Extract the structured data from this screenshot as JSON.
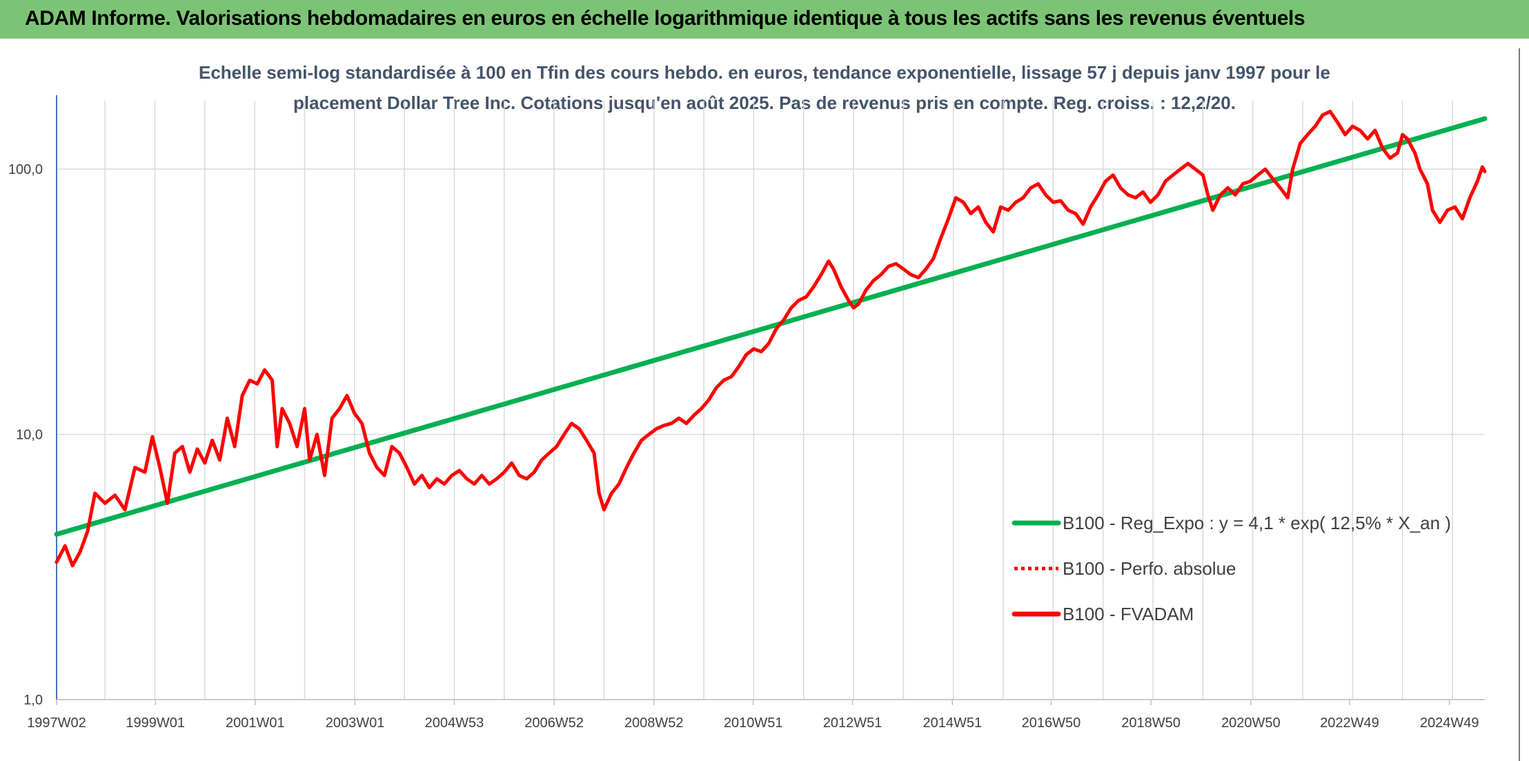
{
  "header": {
    "title": "ADAM Informe. Valorisations hebdomadaires en euros en échelle logarithmique identique à tous les actifs sans les revenus éventuels"
  },
  "colors": {
    "header_bg": "#7cc475",
    "regression": "#00b050",
    "fvadam": "#ff0000",
    "perf_abs": "#ff0000",
    "grid": "#d9d9d9",
    "accent_corner": "#f5b800"
  },
  "chart_data": {
    "type": "line",
    "title_lines": [
      "Echelle semi-log standardisée à 100 en Tfin des cours hebdo. en euros, tendance exponentielle, lissage 57 j depuis janv 1997 pour le",
      "placement Dollar Tree Inc. Cotations jusqu'en août 2025. Pas de revenus pris en compte. Reg. croiss. : 12,2/20."
    ],
    "xlabel": "",
    "ylabel": "",
    "y_scale": "log",
    "ylim": [
      1,
      190
    ],
    "y_ticks": [
      {
        "value": 100,
        "label": "100,0"
      },
      {
        "value": 10,
        "label": "10,0"
      },
      {
        "value": 1,
        "label": "1,0"
      }
    ],
    "x_range": [
      1997.03,
      2025.65
    ],
    "x_ticks": [
      {
        "value": 1997.03,
        "label": "1997W02"
      },
      {
        "value": 1999.01,
        "label": "1999W01"
      },
      {
        "value": 2001.01,
        "label": "2001W01"
      },
      {
        "value": 2003.01,
        "label": "2003W01"
      },
      {
        "value": 2005.0,
        "label": "2004W53"
      },
      {
        "value": 2007.0,
        "label": "2006W52"
      },
      {
        "value": 2009.0,
        "label": "2008W52"
      },
      {
        "value": 2010.99,
        "label": "2010W51"
      },
      {
        "value": 2012.98,
        "label": "2012W51"
      },
      {
        "value": 2014.98,
        "label": "2014W51"
      },
      {
        "value": 2016.96,
        "label": "2016W50"
      },
      {
        "value": 2018.96,
        "label": "2018W50"
      },
      {
        "value": 2020.96,
        "label": "2020W50"
      },
      {
        "value": 2022.94,
        "label": "2022W49"
      },
      {
        "value": 2024.94,
        "label": "2024W49"
      }
    ],
    "grid": true,
    "legend_position": "right",
    "series": [
      {
        "name": "B100 - Reg_Expo : y = 4,1 * exp( 12,5% *  X_an )",
        "color": "#00b050",
        "style": "solid",
        "points": [
          [
            1997.03,
            4.2
          ],
          [
            2025.65,
            155
          ]
        ]
      },
      {
        "name": "B100 - Perfo. absolue",
        "color": "#ff0000",
        "style": "dotted",
        "points": []
      },
      {
        "name": "B100 - FVADAM",
        "color": "#ff0000",
        "style": "solid",
        "points": [
          [
            1997.03,
            3.3
          ],
          [
            1997.2,
            3.8
          ],
          [
            1997.35,
            3.2
          ],
          [
            1997.5,
            3.6
          ],
          [
            1997.65,
            4.3
          ],
          [
            1997.8,
            6.0
          ],
          [
            1998.0,
            5.5
          ],
          [
            1998.2,
            5.9
          ],
          [
            1998.4,
            5.2
          ],
          [
            1998.6,
            7.5
          ],
          [
            1998.8,
            7.2
          ],
          [
            1998.95,
            9.8
          ],
          [
            1999.1,
            7.5
          ],
          [
            1999.25,
            5.5
          ],
          [
            1999.4,
            8.5
          ],
          [
            1999.55,
            9.0
          ],
          [
            1999.7,
            7.2
          ],
          [
            1999.85,
            8.8
          ],
          [
            2000.0,
            7.8
          ],
          [
            2000.15,
            9.5
          ],
          [
            2000.3,
            8.0
          ],
          [
            2000.45,
            11.5
          ],
          [
            2000.6,
            9.0
          ],
          [
            2000.75,
            14.0
          ],
          [
            2000.9,
            16.0
          ],
          [
            2001.05,
            15.5
          ],
          [
            2001.2,
            17.5
          ],
          [
            2001.35,
            16.0
          ],
          [
            2001.45,
            9.0
          ],
          [
            2001.55,
            12.5
          ],
          [
            2001.7,
            11.0
          ],
          [
            2001.85,
            9.0
          ],
          [
            2002.0,
            12.5
          ],
          [
            2002.1,
            8.0
          ],
          [
            2002.25,
            10.0
          ],
          [
            2002.4,
            7.0
          ],
          [
            2002.55,
            11.5
          ],
          [
            2002.7,
            12.5
          ],
          [
            2002.85,
            14.0
          ],
          [
            2003.0,
            12.0
          ],
          [
            2003.15,
            11.0
          ],
          [
            2003.3,
            8.5
          ],
          [
            2003.45,
            7.5
          ],
          [
            2003.6,
            7.0
          ],
          [
            2003.75,
            9.0
          ],
          [
            2003.9,
            8.5
          ],
          [
            2004.05,
            7.5
          ],
          [
            2004.2,
            6.5
          ],
          [
            2004.35,
            7.0
          ],
          [
            2004.5,
            6.3
          ],
          [
            2004.65,
            6.8
          ],
          [
            2004.8,
            6.5
          ],
          [
            2004.95,
            7.0
          ],
          [
            2005.1,
            7.3
          ],
          [
            2005.25,
            6.8
          ],
          [
            2005.4,
            6.5
          ],
          [
            2005.55,
            7.0
          ],
          [
            2005.7,
            6.5
          ],
          [
            2005.85,
            6.8
          ],
          [
            2006.0,
            7.2
          ],
          [
            2006.15,
            7.8
          ],
          [
            2006.3,
            7.0
          ],
          [
            2006.45,
            6.8
          ],
          [
            2006.6,
            7.2
          ],
          [
            2006.75,
            8.0
          ],
          [
            2006.9,
            8.5
          ],
          [
            2007.05,
            9.0
          ],
          [
            2007.2,
            10.0
          ],
          [
            2007.35,
            11.0
          ],
          [
            2007.5,
            10.5
          ],
          [
            2007.65,
            9.5
          ],
          [
            2007.8,
            8.5
          ],
          [
            2007.9,
            6.0
          ],
          [
            2008.0,
            5.2
          ],
          [
            2008.15,
            6.0
          ],
          [
            2008.3,
            6.5
          ],
          [
            2008.45,
            7.5
          ],
          [
            2008.6,
            8.5
          ],
          [
            2008.75,
            9.5
          ],
          [
            2008.9,
            10.0
          ],
          [
            2009.05,
            10.5
          ],
          [
            2009.2,
            10.8
          ],
          [
            2009.35,
            11.0
          ],
          [
            2009.5,
            11.5
          ],
          [
            2009.65,
            11.0
          ],
          [
            2009.8,
            11.8
          ],
          [
            2009.95,
            12.5
          ],
          [
            2010.1,
            13.5
          ],
          [
            2010.25,
            15.0
          ],
          [
            2010.4,
            16.0
          ],
          [
            2010.55,
            16.5
          ],
          [
            2010.7,
            18.0
          ],
          [
            2010.85,
            20.0
          ],
          [
            2011.0,
            21.0
          ],
          [
            2011.15,
            20.5
          ],
          [
            2011.3,
            22.0
          ],
          [
            2011.45,
            25.0
          ],
          [
            2011.6,
            27.0
          ],
          [
            2011.75,
            30.0
          ],
          [
            2011.9,
            32.0
          ],
          [
            2012.05,
            33.0
          ],
          [
            2012.2,
            36.0
          ],
          [
            2012.35,
            40.0
          ],
          [
            2012.5,
            45.0
          ],
          [
            2012.6,
            42.0
          ],
          [
            2012.75,
            36.0
          ],
          [
            2012.9,
            32.0
          ],
          [
            2013.0,
            30.0
          ],
          [
            2013.1,
            31.0
          ],
          [
            2013.25,
            35.0
          ],
          [
            2013.4,
            38.0
          ],
          [
            2013.55,
            40.0
          ],
          [
            2013.7,
            43.0
          ],
          [
            2013.85,
            44.0
          ],
          [
            2014.0,
            42.0
          ],
          [
            2014.15,
            40.0
          ],
          [
            2014.3,
            39.0
          ],
          [
            2014.45,
            42.0
          ],
          [
            2014.6,
            46.0
          ],
          [
            2014.75,
            55.0
          ],
          [
            2014.9,
            65.0
          ],
          [
            2015.05,
            78.0
          ],
          [
            2015.2,
            75.0
          ],
          [
            2015.35,
            68.0
          ],
          [
            2015.5,
            72.0
          ],
          [
            2015.65,
            63.0
          ],
          [
            2015.8,
            58.0
          ],
          [
            2015.95,
            72.0
          ],
          [
            2016.1,
            70.0
          ],
          [
            2016.25,
            75.0
          ],
          [
            2016.4,
            78.0
          ],
          [
            2016.55,
            85.0
          ],
          [
            2016.7,
            88.0
          ],
          [
            2016.85,
            80.0
          ],
          [
            2017.0,
            75.0
          ],
          [
            2017.15,
            76.0
          ],
          [
            2017.3,
            70.0
          ],
          [
            2017.45,
            68.0
          ],
          [
            2017.6,
            62.0
          ],
          [
            2017.75,
            72.0
          ],
          [
            2017.9,
            80.0
          ],
          [
            2018.05,
            90.0
          ],
          [
            2018.2,
            95.0
          ],
          [
            2018.35,
            85.0
          ],
          [
            2018.5,
            80.0
          ],
          [
            2018.65,
            78.0
          ],
          [
            2018.8,
            82.0
          ],
          [
            2018.95,
            75.0
          ],
          [
            2019.1,
            80.0
          ],
          [
            2019.25,
            90.0
          ],
          [
            2019.4,
            95.0
          ],
          [
            2019.55,
            100.0
          ],
          [
            2019.7,
            105.0
          ],
          [
            2019.85,
            100.0
          ],
          [
            2020.0,
            95.0
          ],
          [
            2020.1,
            80.0
          ],
          [
            2020.2,
            70.0
          ],
          [
            2020.35,
            80.0
          ],
          [
            2020.5,
            85.0
          ],
          [
            2020.65,
            80.0
          ],
          [
            2020.8,
            88.0
          ],
          [
            2020.95,
            90.0
          ],
          [
            2021.1,
            95.0
          ],
          [
            2021.25,
            100.0
          ],
          [
            2021.4,
            92.0
          ],
          [
            2021.55,
            85.0
          ],
          [
            2021.7,
            78.0
          ],
          [
            2021.8,
            100.0
          ],
          [
            2021.95,
            125.0
          ],
          [
            2022.1,
            135.0
          ],
          [
            2022.25,
            145.0
          ],
          [
            2022.4,
            160.0
          ],
          [
            2022.55,
            165.0
          ],
          [
            2022.7,
            150.0
          ],
          [
            2022.85,
            135.0
          ],
          [
            2023.0,
            145.0
          ],
          [
            2023.15,
            140.0
          ],
          [
            2023.3,
            130.0
          ],
          [
            2023.45,
            140.0
          ],
          [
            2023.6,
            120.0
          ],
          [
            2023.75,
            110.0
          ],
          [
            2023.9,
            115.0
          ],
          [
            2024.0,
            135.0
          ],
          [
            2024.1,
            130.0
          ],
          [
            2024.25,
            115.0
          ],
          [
            2024.35,
            100.0
          ],
          [
            2024.5,
            88.0
          ],
          [
            2024.6,
            70.0
          ],
          [
            2024.75,
            63.0
          ],
          [
            2024.9,
            70.0
          ],
          [
            2025.05,
            72.0
          ],
          [
            2025.2,
            65.0
          ],
          [
            2025.35,
            78.0
          ],
          [
            2025.5,
            90.0
          ],
          [
            2025.6,
            102.0
          ],
          [
            2025.65,
            98.0
          ]
        ]
      }
    ]
  }
}
